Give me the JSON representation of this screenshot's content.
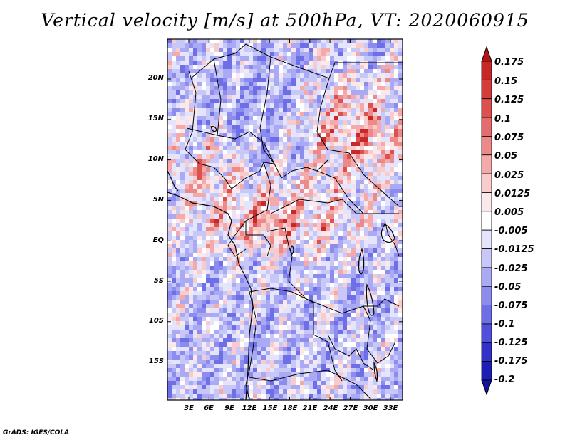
{
  "title": "Vertical velocity [m/s] at 500hPa, VT: 2020060915",
  "credit": "GrADS: IGES/COLA",
  "map": {
    "y_labels": [
      "20N",
      "15N",
      "10N",
      "5N",
      "EQ",
      "5S",
      "10S",
      "15S"
    ],
    "x_labels": [
      "3E",
      "6E",
      "9E",
      "12E",
      "15E",
      "18E",
      "21E",
      "24E",
      "27E",
      "30E",
      "33E"
    ]
  },
  "colorbar": {
    "labels": [
      "0.175",
      "0.15",
      "0.125",
      "0.1",
      "0.075",
      "0.05",
      "0.025",
      "0.0125",
      "0.005",
      "-0.005",
      "-0.0125",
      "-0.025",
      "-0.05",
      "-0.075",
      "-0.1",
      "-0.125",
      "-0.175",
      "-0.2"
    ],
    "colors": [
      "#b41414",
      "#c82828",
      "#d43c3c",
      "#dc5050",
      "#e46c6c",
      "#ec8a8a",
      "#f4aaaa",
      "#f8cccc",
      "#fce8e8",
      "#ffffff",
      "#e4e4fc",
      "#c8c8f8",
      "#aaaaf4",
      "#8c8cee",
      "#6e6ee6",
      "#5050dc",
      "#3232c8",
      "#1e1eb4",
      "#1414a0"
    ]
  }
}
